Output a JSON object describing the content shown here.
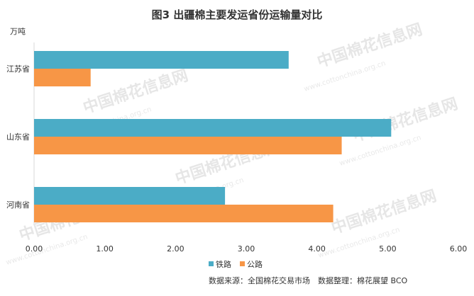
{
  "chart_data": {
    "type": "bar",
    "orientation": "horizontal",
    "title": "图3 出疆棉主要发运省份运输量对比",
    "unit_label": "万吨",
    "categories": [
      "江苏省",
      "山东省",
      "河南省"
    ],
    "series": [
      {
        "name": "铁路",
        "color": "#4bacc6",
        "values": [
          3.6,
          5.05,
          2.7
        ]
      },
      {
        "name": "公路",
        "color": "#f79646",
        "values": [
          0.8,
          4.35,
          4.23
        ]
      }
    ],
    "x_ticks": [
      "0.00",
      "1.00",
      "2.00",
      "3.00",
      "4.00",
      "5.00",
      "6.00"
    ],
    "xlim": [
      0,
      6
    ],
    "grid": false,
    "legend_position": "bottom"
  },
  "footer": {
    "source_text": "数据来源：全国棉花交易市场　数据整理：棉花展望 BCO"
  },
  "watermark": {
    "text": "中国棉花信息网",
    "url": "www.cottonchina.org.cn"
  }
}
